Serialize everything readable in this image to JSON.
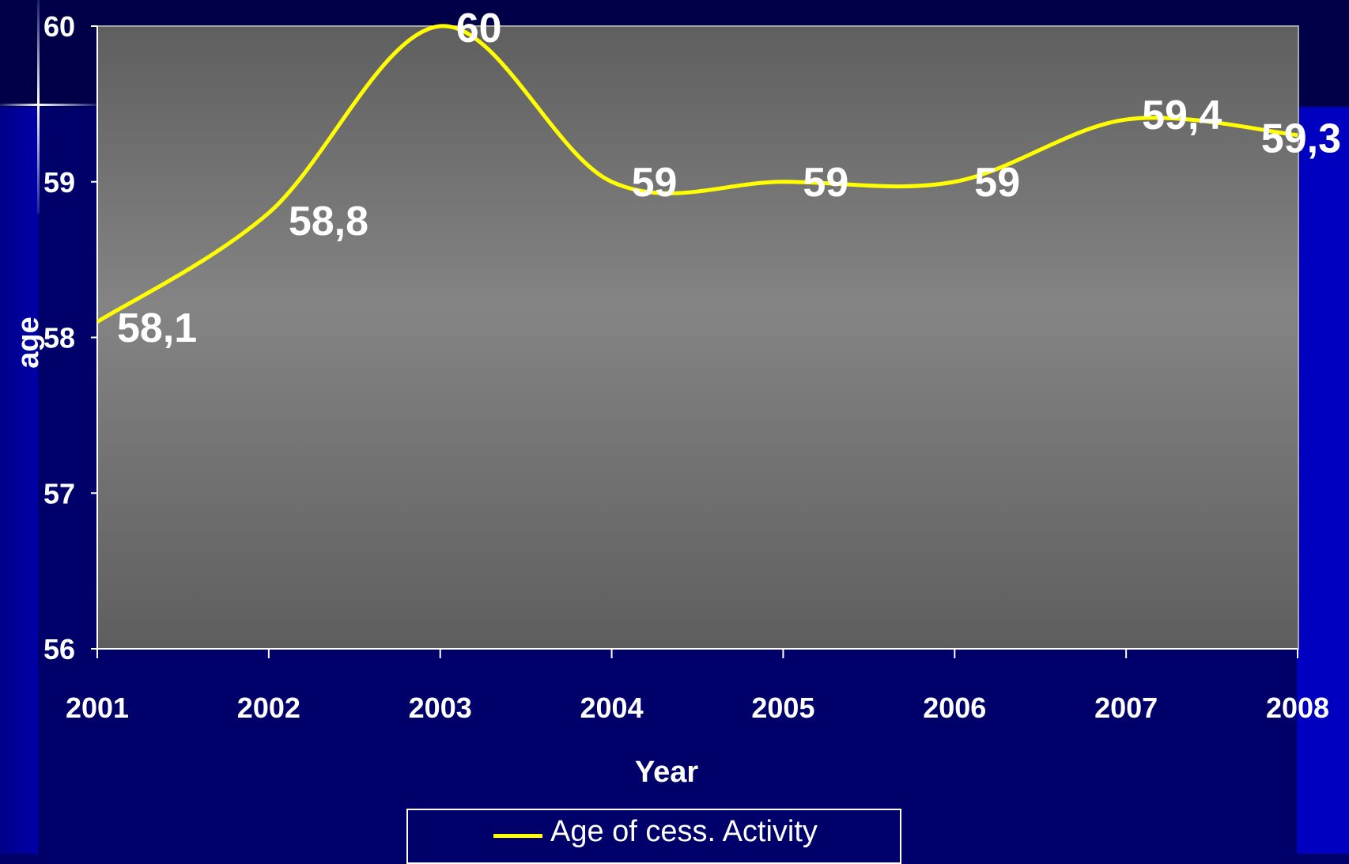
{
  "colors": {
    "background": "#00006b",
    "plot_area": "#7f7f7f",
    "line": "#ffff00",
    "text": "#ffffff"
  },
  "chart_data": {
    "type": "line",
    "title": "",
    "xlabel": "Year",
    "ylabel": "age",
    "categories": [
      "2001",
      "2002",
      "2003",
      "2004",
      "2005",
      "2006",
      "2007",
      "2008"
    ],
    "series": [
      {
        "name": "Age of cess. Activity",
        "values": [
          58.1,
          58.8,
          60,
          59,
          59,
          59,
          59.4,
          59.3
        ],
        "data_labels": [
          "58,1",
          "58,8",
          "60",
          "59",
          "59",
          "59",
          "59,4",
          "59,3"
        ],
        "smooth": true
      }
    ],
    "ylim": [
      56,
      60
    ],
    "yticks": [
      "56",
      "57",
      "58",
      "59",
      "60"
    ],
    "grid": false,
    "legend": "bottom"
  }
}
